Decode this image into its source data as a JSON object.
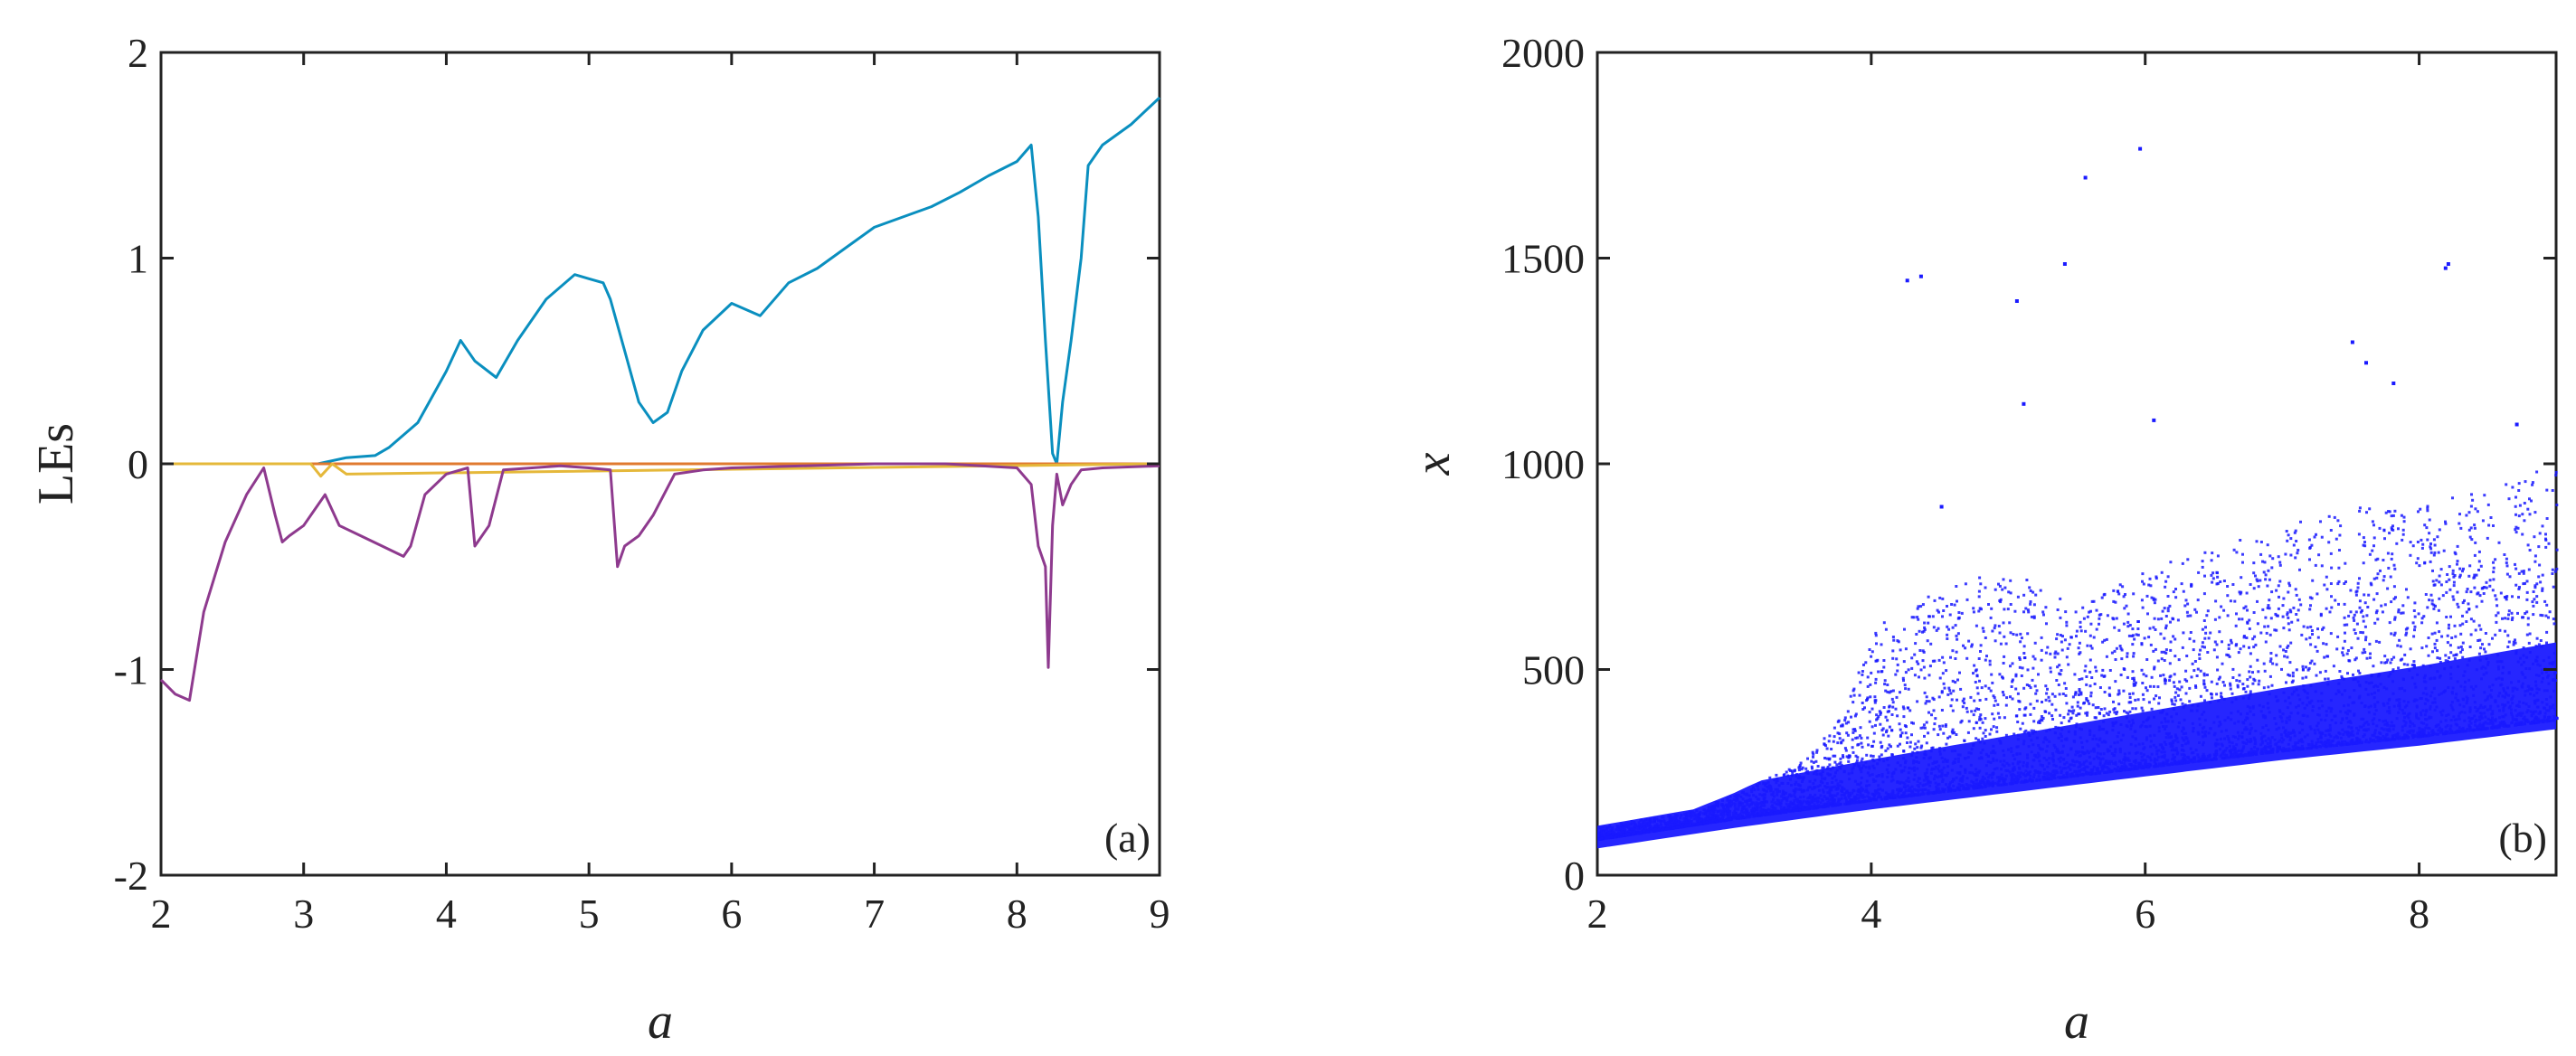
{
  "chart_data": [
    {
      "type": "line",
      "panel_label": "(a)",
      "xlabel": "a",
      "ylabel": "LEs",
      "xlim": [
        2,
        9
      ],
      "ylim": [
        -2,
        2
      ],
      "xticks": [
        2,
        3,
        4,
        5,
        6,
        7,
        8,
        9
      ],
      "yticks": [
        -2,
        -1,
        0,
        1,
        2
      ],
      "grid": false,
      "series": [
        {
          "color": "#0a8fbf",
          "x": [
            2.0,
            3.1,
            3.3,
            3.5,
            3.6,
            3.8,
            4.0,
            4.1,
            4.2,
            4.35,
            4.5,
            4.7,
            4.9,
            5.0,
            5.1,
            5.15,
            5.25,
            5.35,
            5.45,
            5.55,
            5.65,
            5.8,
            6.0,
            6.2,
            6.4,
            6.6,
            6.8,
            7.0,
            7.2,
            7.4,
            7.6,
            7.8,
            8.0,
            8.1,
            8.15,
            8.2,
            8.25,
            8.28,
            8.32,
            8.38,
            8.45,
            8.5,
            8.6,
            8.8,
            9.0
          ],
          "y": [
            0.0,
            0.0,
            0.03,
            0.04,
            0.08,
            0.2,
            0.45,
            0.6,
            0.5,
            0.42,
            0.6,
            0.8,
            0.92,
            0.9,
            0.88,
            0.8,
            0.55,
            0.3,
            0.2,
            0.25,
            0.45,
            0.65,
            0.78,
            0.72,
            0.88,
            0.95,
            1.05,
            1.15,
            1.2,
            1.25,
            1.32,
            1.4,
            1.47,
            1.55,
            1.2,
            0.6,
            0.05,
            0.0,
            0.3,
            0.6,
            1.0,
            1.45,
            1.55,
            1.65,
            1.78
          ]
        },
        {
          "color": "#e07a2f",
          "x": [
            2.0,
            9.0
          ],
          "y": [
            0.0,
            0.0
          ]
        },
        {
          "color": "#e5b83a",
          "x": [
            2.0,
            3.05,
            3.12,
            3.2,
            3.3,
            9.0
          ],
          "y": [
            0.0,
            0.0,
            -0.06,
            0.0,
            -0.05,
            0.0
          ]
        },
        {
          "color": "#8e3a8e",
          "x": [
            2.0,
            2.1,
            2.2,
            2.3,
            2.45,
            2.6,
            2.72,
            2.8,
            2.85,
            2.9,
            3.0,
            3.15,
            3.25,
            3.4,
            3.55,
            3.7,
            3.75,
            3.85,
            4.0,
            4.15,
            4.2,
            4.3,
            4.4,
            4.6,
            4.8,
            5.0,
            5.15,
            5.2,
            5.25,
            5.35,
            5.45,
            5.6,
            5.8,
            6.0,
            6.5,
            7.0,
            7.5,
            8.0,
            8.1,
            8.15,
            8.2,
            8.22,
            8.25,
            8.28,
            8.32,
            8.38,
            8.45,
            8.6,
            9.0
          ],
          "y": [
            -1.05,
            -1.12,
            -1.15,
            -0.72,
            -0.38,
            -0.15,
            -0.02,
            -0.25,
            -0.38,
            -0.35,
            -0.3,
            -0.15,
            -0.3,
            -0.35,
            -0.4,
            -0.45,
            -0.4,
            -0.15,
            -0.05,
            -0.02,
            -0.4,
            -0.3,
            -0.03,
            -0.02,
            -0.01,
            -0.02,
            -0.03,
            -0.5,
            -0.4,
            -0.35,
            -0.25,
            -0.05,
            -0.03,
            -0.02,
            -0.01,
            0.0,
            0.0,
            -0.02,
            -0.1,
            -0.4,
            -0.5,
            -0.99,
            -0.3,
            -0.05,
            -0.2,
            -0.1,
            -0.03,
            -0.02,
            -0.01
          ]
        }
      ]
    },
    {
      "type": "scatter",
      "panel_label": "(b)",
      "xlabel": "a",
      "ylabel": "x",
      "xlim": [
        2,
        9
      ],
      "ylim": [
        0,
        2000
      ],
      "xticks": [
        2,
        4,
        6,
        8
      ],
      "yticks": [
        0,
        500,
        1000,
        1500,
        2000
      ],
      "grid": false,
      "series": [
        {
          "color": "#1a1aff",
          "lower_envelope": {
            "x": [
              2.0,
              3.0,
              4.0,
              5.0,
              6.0,
              7.0,
              8.0,
              9.0
            ],
            "y": [
              90,
              140,
              185,
              225,
              265,
              305,
              340,
              380
            ]
          },
          "upper_envelope": {
            "x": [
              2.0,
              2.7,
              3.0,
              3.5,
              3.8,
              4.0,
              4.5,
              5.0,
              5.5,
              6.0,
              6.5,
              7.0,
              7.5,
              8.0,
              8.5,
              9.0
            ],
            "y": [
              120,
              160,
              200,
              280,
              400,
              600,
              700,
              750,
              650,
              750,
              800,
              850,
              900,
              900,
              950,
              1000
            ]
          },
          "outliers": {
            "x": [
              4.25,
              4.35,
              5.05,
              5.1,
              5.4,
              5.55,
              5.95,
              7.5,
              7.6,
              8.18,
              8.2,
              6.05,
              4.5,
              7.8,
              8.7
            ],
            "y": [
              1450,
              1460,
              1400,
              1150,
              1490,
              1700,
              1770,
              1300,
              1250,
              1480,
              1490,
              1110,
              900,
              1200,
              1100
            ]
          }
        }
      ]
    }
  ]
}
